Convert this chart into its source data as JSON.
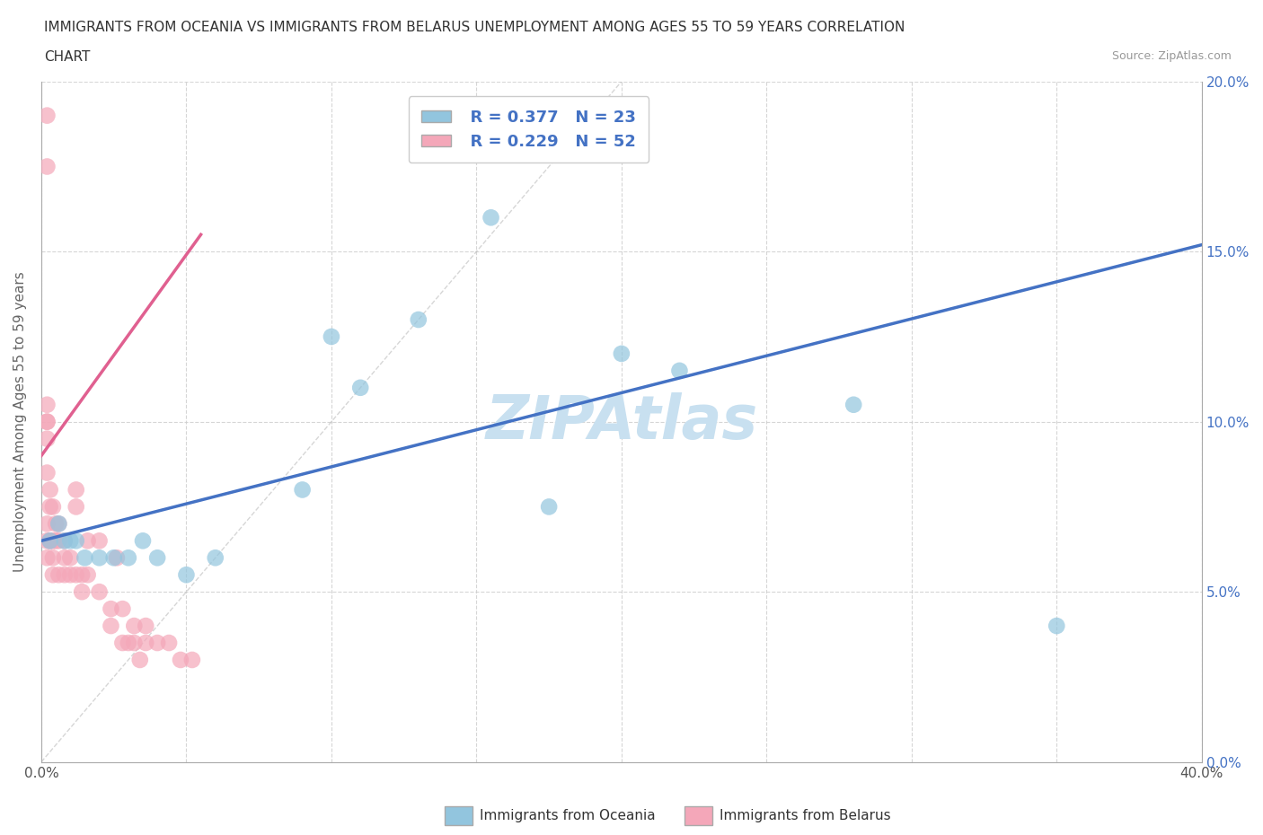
{
  "title_line1": "IMMIGRANTS FROM OCEANIA VS IMMIGRANTS FROM BELARUS UNEMPLOYMENT AMONG AGES 55 TO 59 YEARS CORRELATION",
  "title_line2": "CHART",
  "source_text": "Source: ZipAtlas.com",
  "ylabel": "Unemployment Among Ages 55 to 59 years",
  "xlabel_oceania": "Immigrants from Oceania",
  "xlabel_belarus": "Immigrants from Belarus",
  "xlim": [
    0.0,
    0.4
  ],
  "ylim": [
    0.0,
    0.2
  ],
  "xticks": [
    0.0,
    0.05,
    0.1,
    0.15,
    0.2,
    0.25,
    0.3,
    0.35,
    0.4
  ],
  "yticks": [
    0.0,
    0.05,
    0.1,
    0.15,
    0.2
  ],
  "xticklabels": [
    "0.0%",
    "",
    "",
    "",
    "",
    "",
    "",
    "",
    "40.0%"
  ],
  "yticklabels_right": [
    "0.0%",
    "5.0%",
    "10.0%",
    "15.0%",
    "20.0%"
  ],
  "oceania_color": "#92C5DE",
  "belarus_color": "#F4A7B9",
  "trend_oceania_color": "#4472C4",
  "trend_belarus_color": "#E06090",
  "watermark_color": "#C8E0F0",
  "legend_R_oceania": "R = 0.377",
  "legend_N_oceania": "N = 23",
  "legend_R_belarus": "R = 0.229",
  "legend_N_belarus": "N = 52",
  "oceania_x": [
    0.003,
    0.006,
    0.008,
    0.01,
    0.012,
    0.015,
    0.02,
    0.025,
    0.03,
    0.035,
    0.04,
    0.05,
    0.06,
    0.09,
    0.1,
    0.11,
    0.13,
    0.155,
    0.175,
    0.2,
    0.22,
    0.28,
    0.35
  ],
  "oceania_y": [
    0.065,
    0.07,
    0.065,
    0.065,
    0.065,
    0.06,
    0.06,
    0.06,
    0.06,
    0.065,
    0.06,
    0.055,
    0.06,
    0.08,
    0.125,
    0.11,
    0.13,
    0.16,
    0.075,
    0.12,
    0.115,
    0.105,
    0.04
  ],
  "belarus_x": [
    0.002,
    0.002,
    0.002,
    0.002,
    0.002,
    0.002,
    0.002,
    0.002,
    0.002,
    0.002,
    0.003,
    0.003,
    0.003,
    0.003,
    0.004,
    0.004,
    0.004,
    0.004,
    0.005,
    0.005,
    0.006,
    0.006,
    0.006,
    0.008,
    0.008,
    0.008,
    0.01,
    0.01,
    0.012,
    0.012,
    0.012,
    0.014,
    0.014,
    0.016,
    0.016,
    0.02,
    0.02,
    0.024,
    0.024,
    0.026,
    0.028,
    0.028,
    0.03,
    0.032,
    0.032,
    0.034,
    0.036,
    0.036,
    0.04,
    0.044,
    0.048,
    0.052
  ],
  "belarus_y": [
    0.19,
    0.175,
    0.105,
    0.1,
    0.1,
    0.095,
    0.085,
    0.07,
    0.065,
    0.06,
    0.08,
    0.075,
    0.065,
    0.065,
    0.075,
    0.065,
    0.06,
    0.055,
    0.07,
    0.065,
    0.07,
    0.065,
    0.055,
    0.065,
    0.06,
    0.055,
    0.06,
    0.055,
    0.08,
    0.075,
    0.055,
    0.055,
    0.05,
    0.065,
    0.055,
    0.065,
    0.05,
    0.045,
    0.04,
    0.06,
    0.045,
    0.035,
    0.035,
    0.04,
    0.035,
    0.03,
    0.04,
    0.035,
    0.035,
    0.035,
    0.03,
    0.03
  ],
  "trend_oceania_start_x": 0.0,
  "trend_oceania_start_y": 0.065,
  "trend_oceania_end_x": 0.4,
  "trend_oceania_end_y": 0.152,
  "trend_belarus_start_x": 0.0,
  "trend_belarus_start_y": 0.09,
  "trend_belarus_end_x": 0.055,
  "trend_belarus_end_y": 0.155
}
